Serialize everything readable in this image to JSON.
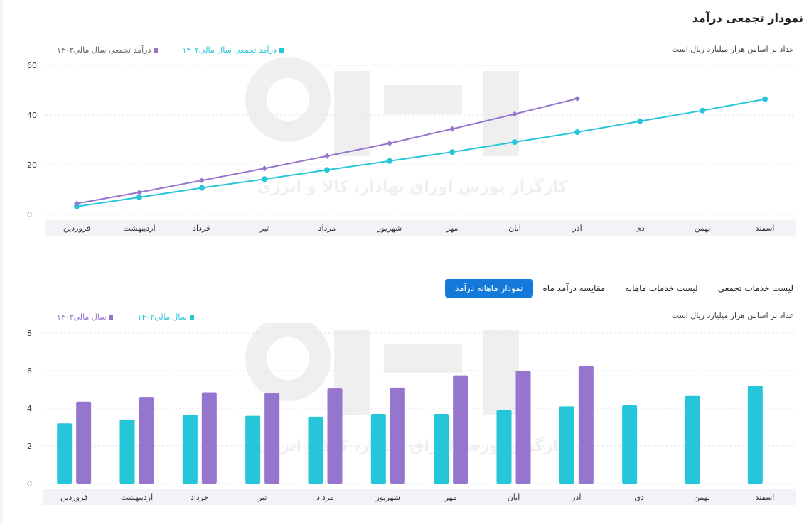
{
  "page": {
    "title": "نمودار تجمعی درآمد",
    "tabs": [
      {
        "label": "نمودار ماهانه درآمد",
        "active": true
      },
      {
        "label": "مقایسه درآمد ماه",
        "active": false
      },
      {
        "label": "لیست خدمات ماهانه",
        "active": false
      },
      {
        "label": "لیست خدمات تجمعی",
        "active": false
      }
    ],
    "watermark_text": "کارگزار بورس اوراق بهادار، کالا و انرژی"
  },
  "colors": {
    "teal": "#26c6da",
    "purple": "#9575cd",
    "grid": "#dfe3e8",
    "axis_band": "#f1f3f6"
  },
  "chart_data": [
    {
      "type": "line",
      "title": "نمودار تجمعی درآمد",
      "note": "اعداد بر اساس هزار میلیارد ریال است",
      "categories": [
        "فروردین",
        "اردیبهشت",
        "خرداد",
        "تیر",
        "مرداد",
        "شهریور",
        "مهر",
        "آبان",
        "آذر",
        "دی",
        "بهمن",
        "اسفند"
      ],
      "y_ticks": [
        "0",
        "20",
        "40",
        "60"
      ],
      "ylim": [
        0,
        60
      ],
      "grid": true,
      "legend_position": "top-left",
      "series": [
        {
          "name": "درآمد تجمعی سال مالی۱۴۰۲",
          "color": "#26c6da",
          "marker": "circle",
          "values": [
            3.2,
            6.9,
            10.7,
            14.2,
            17.9,
            21.5,
            25.1,
            29.1,
            33.1,
            37.5,
            41.8,
            46.4
          ]
        },
        {
          "name": "درآمد تجمعی سال مالی۱۴۰۳",
          "color": "#9575cd",
          "marker": "diamond",
          "values": [
            4.4,
            8.9,
            13.7,
            18.5,
            23.5,
            28.6,
            34.4,
            40.4,
            46.6,
            null,
            null,
            null
          ]
        }
      ]
    },
    {
      "type": "bar",
      "note": "اعداد بر اساس هزار میلیارد ریال است",
      "categories": [
        "فروردین",
        "اردیبهشت",
        "خرداد",
        "تیر",
        "مرداد",
        "شهریور",
        "مهر",
        "آبان",
        "آذر",
        "دی",
        "بهمن",
        "اسفند"
      ],
      "y_ticks": [
        "0",
        "2",
        "4",
        "6",
        "8"
      ],
      "ylim": [
        0,
        8
      ],
      "grid": true,
      "legend_position": "top-left",
      "series": [
        {
          "name": "سال مالی۱۴۰۲",
          "color": "#26c6da",
          "values": [
            3.2,
            3.4,
            3.65,
            3.6,
            3.55,
            3.7,
            3.7,
            3.9,
            4.1,
            4.15,
            4.65,
            5.2
          ]
        },
        {
          "name": "سال مالی۱۴۰۳",
          "color": "#9575cd",
          "values": [
            4.35,
            4.6,
            4.85,
            4.8,
            5.05,
            5.1,
            5.75,
            6.0,
            6.25,
            null,
            null,
            null
          ]
        }
      ]
    }
  ]
}
